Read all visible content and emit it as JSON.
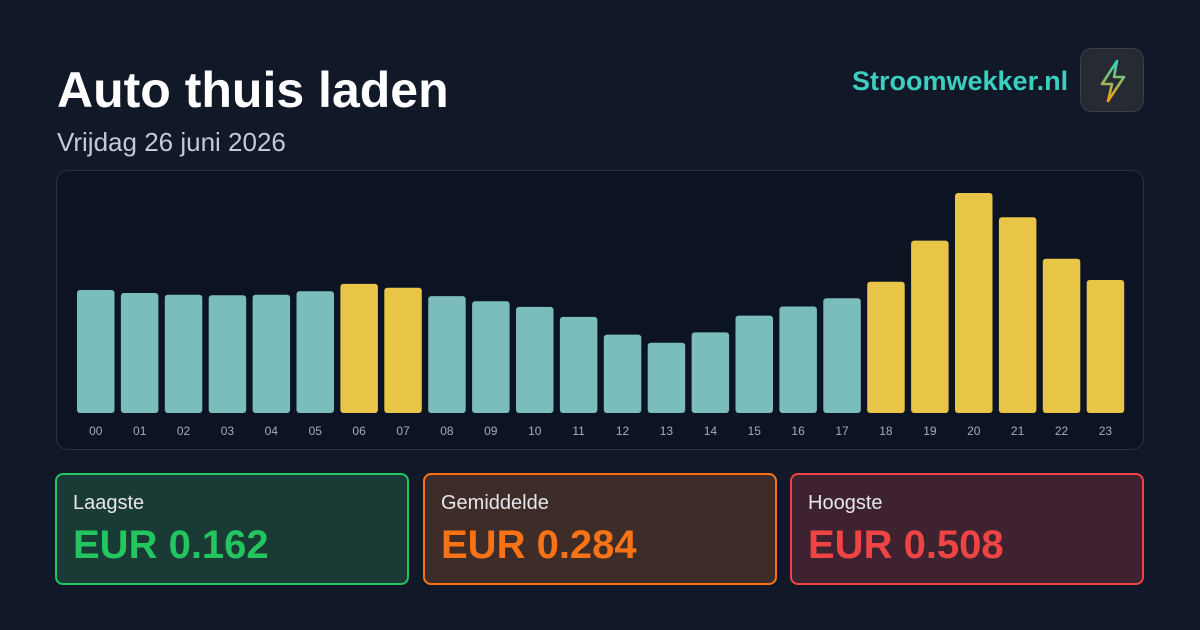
{
  "header": {
    "title": "Auto thuis laden",
    "subtitle": "Vrijdag 26 juni 2026",
    "brand": "Stroomwekker.nl",
    "logo_icon": "lightning-bolt-icon"
  },
  "colors": {
    "normal_bar": "#7bbdbd",
    "highlight_bar": "#e8c547",
    "low": "#22c55e",
    "avg": "#f97316",
    "high": "#ef4444",
    "brand": "#3ccfbf"
  },
  "chart_data": {
    "type": "bar",
    "categories": [
      "00",
      "01",
      "02",
      "03",
      "04",
      "05",
      "06",
      "07",
      "08",
      "09",
      "10",
      "11",
      "12",
      "13",
      "14",
      "15",
      "16",
      "17",
      "18",
      "19",
      "20",
      "21",
      "22",
      "23"
    ],
    "values": [
      0.284,
      0.277,
      0.273,
      0.272,
      0.273,
      0.281,
      0.298,
      0.289,
      0.27,
      0.258,
      0.245,
      0.222,
      0.181,
      0.162,
      0.186,
      0.225,
      0.246,
      0.265,
      0.303,
      0.398,
      0.508,
      0.452,
      0.356,
      0.307
    ],
    "highlighted": [
      false,
      false,
      false,
      false,
      false,
      false,
      true,
      true,
      false,
      false,
      false,
      false,
      false,
      false,
      false,
      false,
      false,
      false,
      true,
      true,
      true,
      true,
      true,
      true
    ],
    "ylim": [
      0,
      0.508
    ]
  },
  "stats": {
    "low": {
      "label": "Laagste",
      "value": "EUR 0.162"
    },
    "avg": {
      "label": "Gemiddelde",
      "value": "EUR 0.284"
    },
    "high": {
      "label": "Hoogste",
      "value": "EUR 0.508"
    }
  }
}
